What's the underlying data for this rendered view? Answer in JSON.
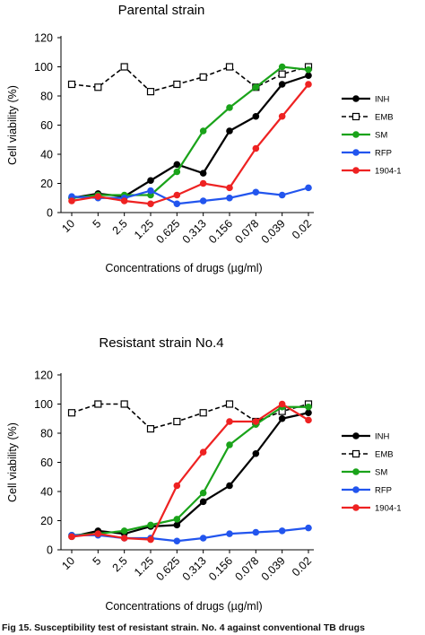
{
  "figure": {
    "caption": "Fig 15. Susceptibility test of resistant strain. No. 4 against conventional TB drugs"
  },
  "chart_data": [
    {
      "type": "line",
      "title": "Parental strain",
      "xlabel": "Concentrations of drugs (µg/ml)",
      "ylabel": "Cell viability (%)",
      "categories": [
        "10",
        "5",
        "2.5",
        "1.25",
        "0.625",
        "0.313",
        "0.156",
        "0.078",
        "0.039",
        "0.02"
      ],
      "ylim": [
        0,
        120
      ],
      "yticks": [
        "0",
        "20",
        "40",
        "60",
        "80",
        "100",
        "120"
      ],
      "grid": false,
      "legend": "right",
      "series": [
        {
          "name": "INH",
          "color": "#000000",
          "dashed": false,
          "marker": "circle",
          "values": [
            10,
            13,
            11,
            22,
            33,
            27,
            56,
            66,
            88,
            94
          ]
        },
        {
          "name": "EMB",
          "color": "#000000",
          "dashed": true,
          "marker": "open-square",
          "values": [
            88,
            86,
            100,
            83,
            88,
            93,
            100,
            86,
            95,
            100
          ]
        },
        {
          "name": "SM",
          "color": "#1aa31a",
          "dashed": false,
          "marker": "circle",
          "values": [
            10,
            12,
            12,
            12,
            28,
            56,
            72,
            86,
            100,
            98
          ]
        },
        {
          "name": "RFP",
          "color": "#2255ee",
          "dashed": false,
          "marker": "circle",
          "values": [
            11,
            10,
            10,
            15,
            6,
            8,
            10,
            14,
            12,
            17
          ]
        },
        {
          "name": "1904-1",
          "color": "#ee2222",
          "dashed": false,
          "marker": "circle",
          "values": [
            8,
            11,
            8,
            6,
            12,
            20,
            17,
            44,
            66,
            88
          ]
        }
      ]
    },
    {
      "type": "line",
      "title": "Resistant strain No.4",
      "xlabel": "Concentrations of drugs (µg/ml)",
      "ylabel": "Cell viability (%)",
      "categories": [
        "10",
        "5",
        "2.5",
        "1.25",
        "0.625",
        "0.313",
        "0.156",
        "0.078",
        "0.039",
        "0.02"
      ],
      "ylim": [
        0,
        120
      ],
      "yticks": [
        "0",
        "20",
        "40",
        "60",
        "80",
        "100",
        "120"
      ],
      "grid": false,
      "legend": "right",
      "series": [
        {
          "name": "INH",
          "color": "#000000",
          "dashed": false,
          "marker": "circle",
          "values": [
            9,
            13,
            11,
            16,
            17,
            33,
            44,
            66,
            90,
            94
          ]
        },
        {
          "name": "EMB",
          "color": "#000000",
          "dashed": true,
          "marker": "open-square",
          "values": [
            94,
            100,
            100,
            83,
            88,
            94,
            100,
            88,
            95,
            100
          ]
        },
        {
          "name": "SM",
          "color": "#1aa31a",
          "dashed": false,
          "marker": "circle",
          "values": [
            10,
            11,
            13,
            17,
            21,
            39,
            72,
            86,
            98,
            98
          ]
        },
        {
          "name": "RFP",
          "color": "#2255ee",
          "dashed": false,
          "marker": "circle",
          "values": [
            10,
            10,
            8,
            8,
            6,
            8,
            11,
            12,
            13,
            15
          ]
        },
        {
          "name": "1904-1",
          "color": "#ee2222",
          "dashed": false,
          "marker": "circle",
          "values": [
            9,
            11,
            8,
            7,
            44,
            67,
            88,
            88,
            100,
            89
          ]
        }
      ]
    }
  ]
}
